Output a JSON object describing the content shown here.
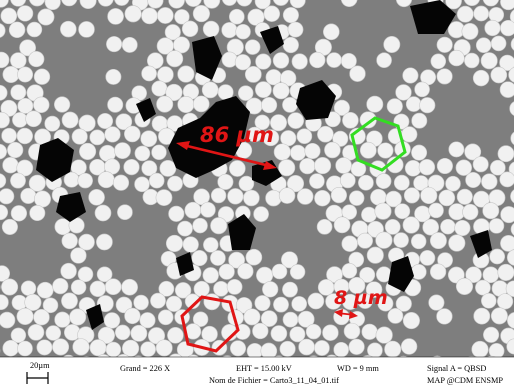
{
  "image": {
    "kind": "SEM cross-section micrograph of fiber-reinforced composite",
    "colors": {
      "matrix": "#7e7e7e",
      "fiber": "#f1f1f1",
      "fiber_edge": "#c8c8c8",
      "porosity": "#050505",
      "annotation_red": "#e01515",
      "annotation_green": "#33dd22",
      "databar_bg": "#ffffff"
    }
  },
  "annotations": {
    "large_measure": {
      "label": "86 µm",
      "color": "#e01515"
    },
    "small_measure": {
      "label": "8 µm",
      "color": "#e01515"
    },
    "green_hexagon": {
      "color": "#33dd22",
      "meaning": "fiber hexagonal packing cell"
    },
    "red_hexagon": {
      "color": "#e01515",
      "meaning": "fiber hexagonal packing cell"
    }
  },
  "databar": {
    "scale_label": "20µm",
    "magnification": "Grand =   226 X",
    "eht": "EHT = 15.00 kV",
    "wd": "WD =   9 mm",
    "signal": "Signal A = QBSD",
    "filename": "Nom de Fichier = Carto3_11_04_01.tif",
    "lab": "MAP @CDM ENSMP"
  }
}
